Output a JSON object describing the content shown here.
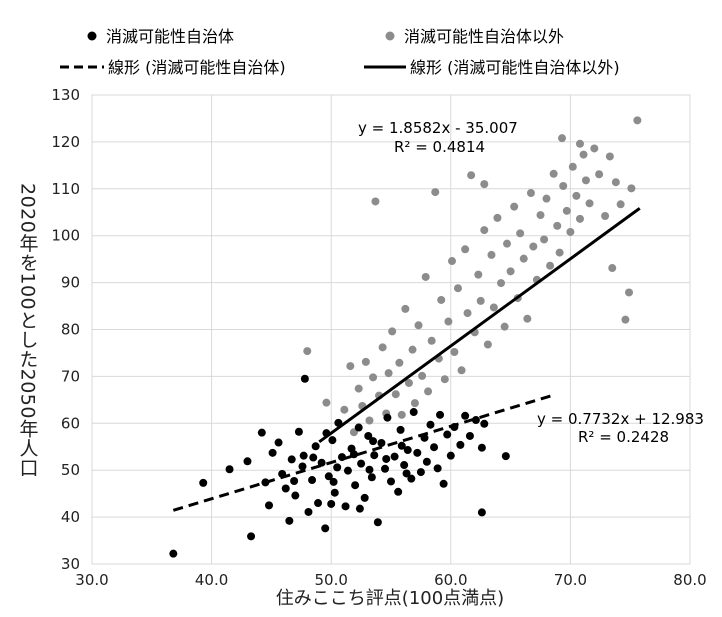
{
  "chart_data": {
    "type": "scatter",
    "xlabel": "住みここち評点(100点満点)",
    "ylabel": "2020年を100とした2050年人口",
    "xlim": [
      30,
      80
    ],
    "ylim": [
      30,
      130
    ],
    "xticks": [
      "30.0",
      "40.0",
      "50.0",
      "60.0",
      "70.0",
      "80.0"
    ],
    "yticks": [
      "30",
      "40",
      "50",
      "60",
      "70",
      "80",
      "90",
      "100",
      "110",
      "120",
      "130"
    ],
    "grid": true,
    "legend_position": "top",
    "series": [
      {
        "name": "消滅可能性自治体",
        "color": "#000000",
        "points": [
          [
            36.8,
            32.2
          ],
          [
            39.3,
            47.3
          ],
          [
            41.5,
            50.2
          ],
          [
            43.3,
            35.9
          ],
          [
            43.0,
            51.9
          ],
          [
            44.2,
            58.0
          ],
          [
            44.5,
            47.4
          ],
          [
            44.8,
            42.5
          ],
          [
            45.1,
            53.7
          ],
          [
            45.6,
            55.9
          ],
          [
            45.9,
            49.2
          ],
          [
            46.2,
            46.1
          ],
          [
            46.5,
            39.2
          ],
          [
            46.7,
            52.3
          ],
          [
            47.0,
            44.6
          ],
          [
            47.3,
            58.2
          ],
          [
            47.6,
            50.8
          ],
          [
            47.8,
            69.5
          ],
          [
            48.1,
            41.1
          ],
          [
            48.4,
            47.9
          ],
          [
            48.7,
            55.1
          ],
          [
            48.9,
            43.0
          ],
          [
            49.2,
            51.6
          ],
          [
            49.5,
            37.6
          ],
          [
            49.8,
            48.7
          ],
          [
            50.1,
            56.4
          ],
          [
            50.3,
            45.2
          ],
          [
            50.6,
            60.1
          ],
          [
            50.9,
            52.8
          ],
          [
            51.2,
            42.3
          ],
          [
            51.4,
            49.9
          ],
          [
            51.7,
            54.6
          ],
          [
            52.0,
            46.8
          ],
          [
            52.3,
            59.1
          ],
          [
            52.5,
            51.4
          ],
          [
            52.8,
            44.1
          ],
          [
            53.1,
            57.3
          ],
          [
            53.4,
            48.5
          ],
          [
            53.6,
            53.2
          ],
          [
            53.9,
            38.9
          ],
          [
            54.2,
            55.8
          ],
          [
            54.5,
            50.3
          ],
          [
            54.7,
            61.2
          ],
          [
            55.0,
            47.6
          ],
          [
            55.3,
            52.9
          ],
          [
            55.6,
            45.4
          ],
          [
            55.8,
            58.6
          ],
          [
            56.1,
            51.1
          ],
          [
            56.4,
            54.3
          ],
          [
            56.7,
            48.2
          ],
          [
            56.9,
            62.4
          ],
          [
            57.2,
            53.7
          ],
          [
            57.5,
            49.6
          ],
          [
            57.8,
            56.9
          ],
          [
            58.0,
            51.8
          ],
          [
            58.3,
            59.7
          ],
          [
            58.6,
            54.9
          ],
          [
            58.9,
            50.4
          ],
          [
            59.1,
            61.8
          ],
          [
            59.4,
            47.1
          ],
          [
            59.7,
            57.6
          ],
          [
            60.0,
            53.1
          ],
          [
            60.3,
            59.2
          ],
          [
            60.8,
            55.4
          ],
          [
            61.2,
            61.6
          ],
          [
            61.6,
            57.3
          ],
          [
            62.1,
            60.7
          ],
          [
            62.6,
            54.8
          ],
          [
            62.6,
            41.0
          ],
          [
            62.8,
            59.9
          ],
          [
            64.6,
            53.0
          ],
          [
            48.5,
            52.7
          ],
          [
            49.6,
            57.9
          ],
          [
            50.5,
            50.6
          ],
          [
            51.9,
            53.4
          ],
          [
            53.2,
            50.1
          ],
          [
            46.9,
            47.7
          ],
          [
            47.7,
            53.1
          ],
          [
            50.2,
            47.5
          ],
          [
            54.6,
            52.4
          ],
          [
            55.9,
            55.2
          ],
          [
            56.3,
            49.3
          ],
          [
            53.5,
            56.2
          ],
          [
            52.4,
            41.8
          ],
          [
            50.0,
            42.8
          ]
        ]
      },
      {
        "name": "消滅可能性自治体以外",
        "color": "#8c8c8c",
        "points": [
          [
            48.0,
            75.4
          ],
          [
            49.6,
            64.4
          ],
          [
            51.1,
            62.9
          ],
          [
            51.6,
            72.2
          ],
          [
            51.9,
            58.1
          ],
          [
            52.3,
            67.4
          ],
          [
            52.6,
            63.7
          ],
          [
            52.9,
            73.1
          ],
          [
            53.2,
            60.6
          ],
          [
            53.5,
            69.8
          ],
          [
            53.7,
            107.3
          ],
          [
            54.0,
            65.9
          ],
          [
            54.3,
            76.2
          ],
          [
            54.6,
            62.1
          ],
          [
            54.8,
            70.7
          ],
          [
            55.1,
            79.6
          ],
          [
            55.4,
            66.2
          ],
          [
            55.7,
            72.9
          ],
          [
            55.9,
            61.8
          ],
          [
            56.2,
            84.4
          ],
          [
            56.5,
            68.6
          ],
          [
            56.8,
            75.7
          ],
          [
            57.0,
            64.3
          ],
          [
            57.3,
            80.9
          ],
          [
            57.6,
            70.1
          ],
          [
            57.9,
            91.2
          ],
          [
            58.1,
            66.8
          ],
          [
            58.4,
            77.6
          ],
          [
            58.7,
            109.3
          ],
          [
            59.0,
            73.8
          ],
          [
            59.2,
            86.3
          ],
          [
            59.5,
            69.4
          ],
          [
            59.8,
            81.7
          ],
          [
            60.1,
            94.6
          ],
          [
            60.3,
            75.2
          ],
          [
            60.6,
            88.8
          ],
          [
            60.9,
            71.3
          ],
          [
            61.2,
            97.1
          ],
          [
            61.4,
            83.5
          ],
          [
            61.7,
            112.9
          ],
          [
            62.0,
            79.4
          ],
          [
            62.3,
            91.7
          ],
          [
            62.5,
            86.1
          ],
          [
            62.8,
            101.2
          ],
          [
            62.8,
            111.0
          ],
          [
            63.1,
            76.8
          ],
          [
            63.4,
            95.9
          ],
          [
            63.6,
            84.7
          ],
          [
            63.9,
            103.8
          ],
          [
            64.2,
            89.9
          ],
          [
            64.5,
            80.6
          ],
          [
            64.7,
            98.3
          ],
          [
            65.0,
            92.4
          ],
          [
            65.3,
            106.2
          ],
          [
            65.6,
            86.7
          ],
          [
            65.8,
            100.5
          ],
          [
            66.1,
            95.1
          ],
          [
            66.4,
            82.3
          ],
          [
            66.7,
            109.1
          ],
          [
            66.9,
            97.7
          ],
          [
            67.2,
            90.6
          ],
          [
            67.5,
            104.4
          ],
          [
            67.8,
            99.2
          ],
          [
            68.0,
            107.9
          ],
          [
            68.3,
            93.6
          ],
          [
            68.6,
            113.2
          ],
          [
            68.9,
            102.1
          ],
          [
            69.1,
            96.4
          ],
          [
            69.4,
            110.6
          ],
          [
            69.7,
            105.3
          ],
          [
            70.0,
            100.8
          ],
          [
            70.2,
            114.7
          ],
          [
            70.5,
            108.5
          ],
          [
            70.8,
            103.6
          ],
          [
            71.1,
            117.3
          ],
          [
            71.3,
            111.8
          ],
          [
            71.6,
            106.9
          ],
          [
            72.0,
            118.6
          ],
          [
            72.4,
            113.1
          ],
          [
            72.9,
            104.2
          ],
          [
            73.3,
            116.9
          ],
          [
            73.8,
            111.4
          ],
          [
            74.2,
            106.7
          ],
          [
            74.6,
            82.1
          ],
          [
            75.1,
            110.1
          ],
          [
            75.6,
            124.6
          ],
          [
            74.9,
            87.9
          ],
          [
            69.3,
            120.8
          ],
          [
            73.5,
            93.1
          ],
          [
            70.8,
            119.6
          ]
        ]
      }
    ],
    "trendlines": [
      {
        "name": "線形 (消滅可能性自治体)",
        "slope": 0.7732,
        "intercept": 12.983,
        "x_range": [
          36.8,
          68.5
        ],
        "style": "dashed",
        "equation": "y = 0.7732x + 12.983",
        "r2": "R² = 0.2428"
      },
      {
        "name": "線形 (消滅可能性自治体以外)",
        "slope": 1.8582,
        "intercept": -35.007,
        "x_range": [
          49.0,
          75.8
        ],
        "style": "solid",
        "equation": "y = 1.8582x - 35.007",
        "r2": "R² = 0.4814"
      }
    ]
  }
}
